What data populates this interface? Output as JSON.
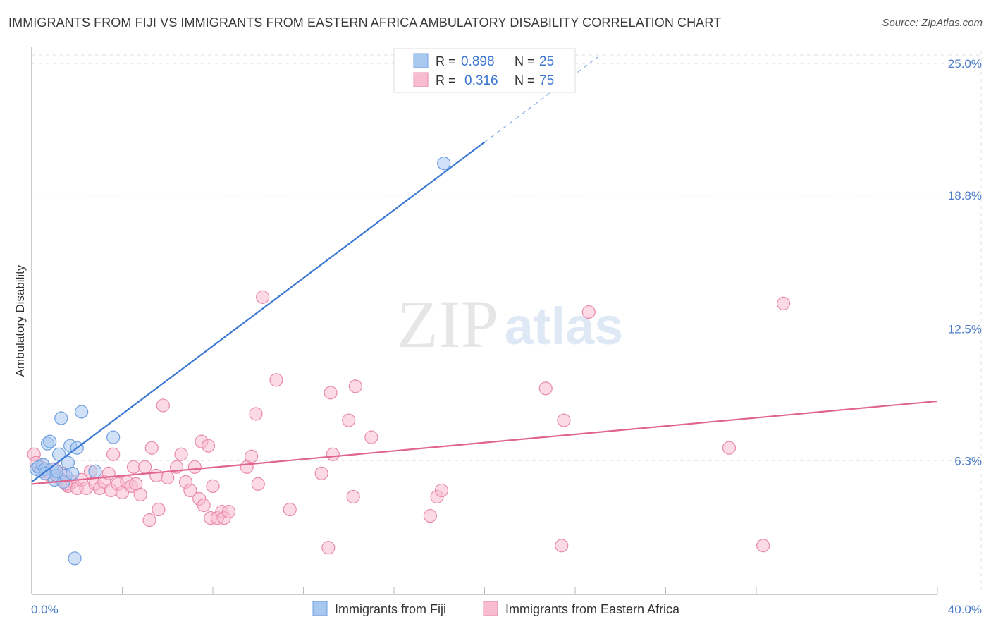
{
  "header": {
    "title": "IMMIGRANTS FROM FIJI VS IMMIGRANTS FROM EASTERN AFRICA AMBULATORY DISABILITY CORRELATION CHART",
    "source": "Source: ZipAtlas.com"
  },
  "watermark": {
    "zip": "ZIP",
    "atlas": "atlas"
  },
  "stats": [
    {
      "r_label": "R =",
      "r_value": "0.898",
      "n_label": "N =",
      "n_value": "25",
      "color": "#a9c8f0",
      "stroke": "#6f9fe0"
    },
    {
      "r_label": "R =",
      "r_value": "0.316",
      "n_label": "N =",
      "n_value": "75",
      "color": "#f7bcd0",
      "stroke": "#e98aaa"
    }
  ],
  "legend": [
    {
      "label": "Immigrants from Fiji",
      "color": "#a9c8f0",
      "stroke": "#6f9fe0"
    },
    {
      "label": "Immigrants from Eastern Africa",
      "color": "#f7bcd0",
      "stroke": "#e98aaa"
    }
  ],
  "chart_data": {
    "type": "scatter",
    "title": "IMMIGRANTS FROM FIJI VS IMMIGRANTS FROM EASTERN AFRICA AMBULATORY DISABILITY CORRELATION CHART",
    "xlabel": "",
    "ylabel": "Ambulatory Disability",
    "xlim": [
      0,
      40
    ],
    "ylim": [
      0,
      25.6
    ],
    "x_tick_labels": [
      "0.0%",
      "40.0%"
    ],
    "y_ticks": [
      6.3,
      12.5,
      18.8,
      25.0
    ],
    "y_tick_labels": [
      "6.3%",
      "12.5%",
      "18.8%",
      "25.0%"
    ],
    "grid": true,
    "legend_position": "bottom",
    "series": [
      {
        "name": "Immigrants from Fiji",
        "color": "#a9c8f0",
        "stroke": "#6f9fe0",
        "line_color": "#3a78d4",
        "trend": {
          "x0": 0,
          "y0": 5.3,
          "x1": 20,
          "y1": 21.3,
          "dash_to_x": 25
        },
        "points": [
          [
            0.2,
            5.9
          ],
          [
            0.3,
            6.0
          ],
          [
            0.4,
            5.8
          ],
          [
            0.5,
            6.1
          ],
          [
            0.6,
            5.9
          ],
          [
            0.7,
            7.1
          ],
          [
            0.8,
            7.2
          ],
          [
            0.9,
            5.9
          ],
          [
            1.0,
            5.4
          ],
          [
            1.1,
            5.6
          ],
          [
            1.2,
            6.6
          ],
          [
            1.3,
            8.3
          ],
          [
            1.4,
            5.3
          ],
          [
            1.5,
            5.6
          ],
          [
            1.6,
            6.2
          ],
          [
            1.7,
            7.0
          ],
          [
            1.8,
            5.7
          ],
          [
            2.0,
            6.9
          ],
          [
            2.2,
            8.6
          ],
          [
            3.6,
            7.4
          ],
          [
            2.8,
            5.8
          ],
          [
            18.2,
            20.3
          ],
          [
            1.9,
            1.7
          ],
          [
            0.6,
            5.7
          ],
          [
            1.1,
            5.8
          ]
        ]
      },
      {
        "name": "Immigrants from Eastern Africa",
        "color": "#f7bcd0",
        "stroke": "#e98aaa",
        "line_color": "#e0648f",
        "trend": {
          "x0": 0,
          "y0": 5.2,
          "x1": 40,
          "y1": 9.1
        },
        "points": [
          [
            0.1,
            6.6
          ],
          [
            0.2,
            6.2
          ],
          [
            0.4,
            6.0
          ],
          [
            0.6,
            5.8
          ],
          [
            0.8,
            5.6
          ],
          [
            1.0,
            5.9
          ],
          [
            1.2,
            5.5
          ],
          [
            1.4,
            5.7
          ],
          [
            1.6,
            5.1
          ],
          [
            1.8,
            5.3
          ],
          [
            2.0,
            5.0
          ],
          [
            2.2,
            5.4
          ],
          [
            2.4,
            5.0
          ],
          [
            2.6,
            5.8
          ],
          [
            2.8,
            5.2
          ],
          [
            3.0,
            5.0
          ],
          [
            3.2,
            5.3
          ],
          [
            3.4,
            5.7
          ],
          [
            3.5,
            4.9
          ],
          [
            3.6,
            6.6
          ],
          [
            3.8,
            5.2
          ],
          [
            4.0,
            4.8
          ],
          [
            4.2,
            5.3
          ],
          [
            4.4,
            5.1
          ],
          [
            4.5,
            6.0
          ],
          [
            4.6,
            5.2
          ],
          [
            4.8,
            4.7
          ],
          [
            5.0,
            6.0
          ],
          [
            5.2,
            3.5
          ],
          [
            5.3,
            6.9
          ],
          [
            5.5,
            5.6
          ],
          [
            5.6,
            4.0
          ],
          [
            5.8,
            8.9
          ],
          [
            6.0,
            5.5
          ],
          [
            6.4,
            6.0
          ],
          [
            6.6,
            6.6
          ],
          [
            6.8,
            5.3
          ],
          [
            7.0,
            4.9
          ],
          [
            7.2,
            6.0
          ],
          [
            7.4,
            4.5
          ],
          [
            7.5,
            7.2
          ],
          [
            7.6,
            4.2
          ],
          [
            7.8,
            7.0
          ],
          [
            7.9,
            3.6
          ],
          [
            8.0,
            5.1
          ],
          [
            8.2,
            3.6
          ],
          [
            8.4,
            3.9
          ],
          [
            8.5,
            3.6
          ],
          [
            8.7,
            3.9
          ],
          [
            9.5,
            6.0
          ],
          [
            9.7,
            6.5
          ],
          [
            10.0,
            5.2
          ],
          [
            10.2,
            14.0
          ],
          [
            9.9,
            8.5
          ],
          [
            10.8,
            10.1
          ],
          [
            11.4,
            4.0
          ],
          [
            12.8,
            5.7
          ],
          [
            13.1,
            2.2
          ],
          [
            13.2,
            9.5
          ],
          [
            13.3,
            6.6
          ],
          [
            14.0,
            8.2
          ],
          [
            14.2,
            4.6
          ],
          [
            14.3,
            9.8
          ],
          [
            15.0,
            7.4
          ],
          [
            17.6,
            3.7
          ],
          [
            17.9,
            4.6
          ],
          [
            18.1,
            4.9
          ],
          [
            22.7,
            9.7
          ],
          [
            23.4,
            2.3
          ],
          [
            23.5,
            8.2
          ],
          [
            24.6,
            13.3
          ],
          [
            32.3,
            2.3
          ],
          [
            33.2,
            13.7
          ],
          [
            30.8,
            6.9
          ],
          [
            1.5,
            5.2
          ]
        ]
      }
    ]
  }
}
